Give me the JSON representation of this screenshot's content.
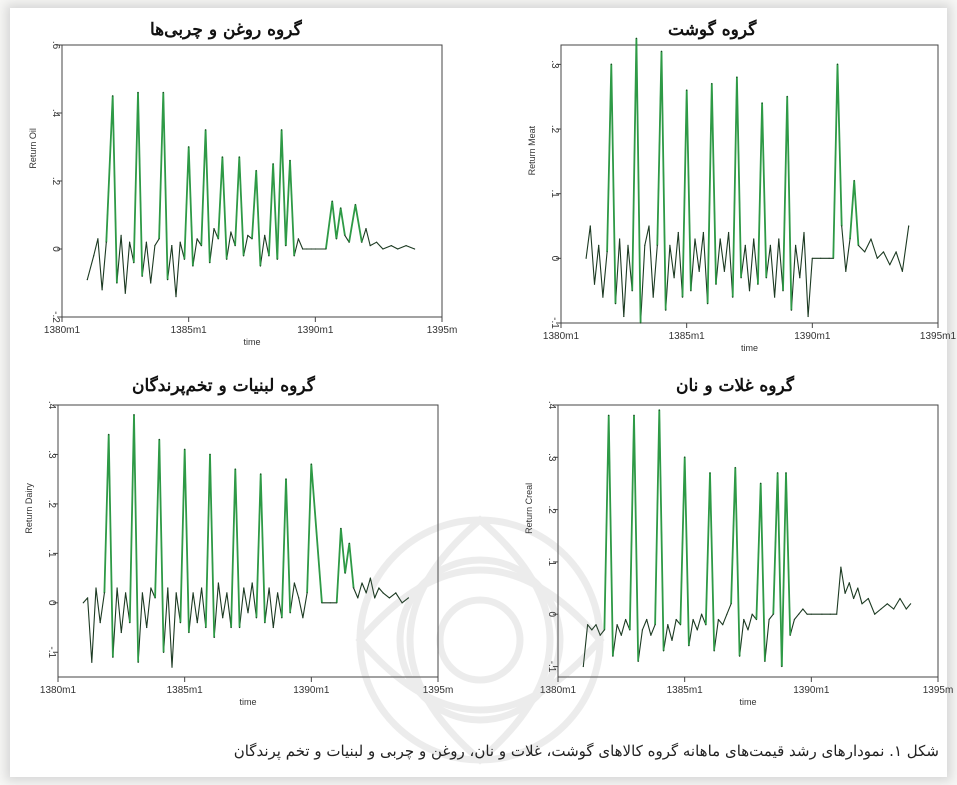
{
  "caption": "شکل ۱. نمودارهای رشد قیمت‌های ماهانه گروه کالاهای گوشت، غلات و نان، روغن و چربی و لبنیات و تخم پرندگان",
  "colors": {
    "spike": "#2e9a46",
    "base": "#1c3a22",
    "axis": "#444444"
  },
  "chart_data": [
    {
      "type": "line",
      "title": "گروه روغن و چربی‌ها",
      "ylabel": "Return Oil",
      "xlabel": "time",
      "x_ticks": [
        "1380m1",
        "1385m1",
        "1390m1",
        "1395m"
      ],
      "y_ticks": [
        "-.2",
        "0",
        ".2",
        ".4",
        ".6"
      ],
      "ylim": [
        -0.2,
        0.6
      ],
      "xlim": [
        "1380m1",
        "1395m1"
      ],
      "series": [
        {
          "x": [
            "1381m1",
            "1381m4",
            "1381m6",
            "1381m8",
            "1381m10",
            "1382m1",
            "1382m3",
            "1382m5",
            "1382m7",
            "1382m9",
            "1382m11",
            "1383m1",
            "1383m3",
            "1383m5",
            "1383m7",
            "1383m9",
            "1383m11",
            "1384m1",
            "1384m3",
            "1384m5",
            "1384m7",
            "1384m9",
            "1384m11",
            "1385m1",
            "1385m3",
            "1385m5",
            "1385m7",
            "1385m9",
            "1385m11",
            "1386m1",
            "1386m3",
            "1386m5",
            "1386m7",
            "1386m9",
            "1386m11",
            "1387m1",
            "1387m3",
            "1387m5",
            "1387m7",
            "1387m9",
            "1387m11",
            "1388m1",
            "1388m3",
            "1388m5",
            "1388m7",
            "1388m9",
            "1388m11",
            "1389m1",
            "1389m3",
            "1389m5",
            "1389m7",
            "1389m9",
            "1389m11",
            "1390m1",
            "1390m6",
            "1390m9",
            "1390m11",
            "1391m1",
            "1391m3",
            "1391m5",
            "1391m8",
            "1391m11",
            "1392m1",
            "1392m3",
            "1392m6",
            "1392m9",
            "1393m1",
            "1393m4",
            "1393m8",
            "1393m12"
          ],
          "y": [
            -0.09,
            -0.02,
            0.03,
            -0.12,
            0.02,
            0.45,
            -0.1,
            0.04,
            -0.13,
            0.02,
            -0.04,
            0.46,
            -0.08,
            0.02,
            -0.1,
            0.01,
            0.03,
            0.46,
            -0.09,
            0.01,
            -0.14,
            0.02,
            -0.03,
            0.3,
            -0.05,
            0.03,
            0.01,
            0.35,
            -0.04,
            0.06,
            0.03,
            0.27,
            -0.03,
            0.05,
            0.01,
            0.27,
            -0.02,
            0.04,
            0.03,
            0.23,
            -0.05,
            0.04,
            -0.02,
            0.25,
            -0.03,
            0.35,
            0.01,
            0.26,
            -0.02,
            0.03,
            0.0,
            0.0,
            0.0,
            0.0,
            0.0,
            0.14,
            0.03,
            0.12,
            0.04,
            0.02,
            0.13,
            0.02,
            0.06,
            0.01,
            0.02,
            0.0,
            0.01,
            0.0,
            0.01,
            0.0
          ]
        }
      ]
    },
    {
      "type": "line",
      "title": "گروه گوشت",
      "ylabel": "Return Meat",
      "xlabel": "time",
      "x_ticks": [
        "1380m1",
        "1385m1",
        "1390m1",
        "1395m1"
      ],
      "y_ticks": [
        "-.1",
        "0",
        ".1",
        ".2",
        ".3"
      ],
      "ylim": [
        -0.1,
        0.33
      ],
      "xlim": [
        "1380m1",
        "1395m1"
      ],
      "series": [
        {
          "x": [
            "1381m1",
            "1381m3",
            "1381m5",
            "1381m7",
            "1381m9",
            "1381m11",
            "1382m1",
            "1382m3",
            "1382m5",
            "1382m7",
            "1382m9",
            "1382m11",
            "1383m1",
            "1383m3",
            "1383m5",
            "1383m7",
            "1383m9",
            "1383m11",
            "1384m1",
            "1384m3",
            "1384m5",
            "1384m7",
            "1384m9",
            "1384m11",
            "1385m1",
            "1385m3",
            "1385m5",
            "1385m7",
            "1385m9",
            "1385m11",
            "1386m1",
            "1386m3",
            "1386m5",
            "1386m7",
            "1386m9",
            "1386m11",
            "1387m1",
            "1387m3",
            "1387m5",
            "1387m7",
            "1387m9",
            "1387m11",
            "1388m1",
            "1388m3",
            "1388m5",
            "1388m7",
            "1388m9",
            "1388m11",
            "1389m1",
            "1389m3",
            "1389m5",
            "1389m7",
            "1389m9",
            "1389m11",
            "1390m1",
            "1390m5",
            "1390m9",
            "1390m11",
            "1391m1",
            "1391m3",
            "1391m5",
            "1391m7",
            "1391m9",
            "1391m11",
            "1392m2",
            "1392m5",
            "1392m8",
            "1392m11",
            "1393m2",
            "1393m5",
            "1393m8",
            "1393m11"
          ],
          "y": [
            0.0,
            0.05,
            -0.04,
            0.02,
            -0.06,
            0.01,
            0.3,
            -0.07,
            0.03,
            -0.09,
            0.02,
            -0.05,
            0.34,
            -0.1,
            0.02,
            0.05,
            -0.06,
            0.02,
            0.32,
            -0.08,
            0.02,
            -0.03,
            0.04,
            -0.06,
            0.26,
            -0.05,
            0.03,
            -0.02,
            0.04,
            -0.07,
            0.27,
            -0.04,
            0.03,
            -0.02,
            0.04,
            -0.06,
            0.28,
            -0.03,
            0.02,
            -0.05,
            0.03,
            -0.04,
            0.24,
            -0.03,
            0.02,
            -0.06,
            0.03,
            -0.05,
            0.25,
            -0.08,
            0.02,
            -0.03,
            0.04,
            -0.09,
            0.0,
            0.0,
            0.0,
            0.0,
            0.3,
            0.05,
            -0.02,
            0.03,
            0.12,
            0.02,
            0.01,
            0.03,
            0.0,
            0.01,
            -0.01,
            0.01,
            -0.02,
            0.05
          ]
        }
      ]
    },
    {
      "type": "line",
      "title": "گروه لبنیات و تخم‌پرندگان",
      "ylabel": "Return Dairy",
      "xlabel": "time",
      "x_ticks": [
        "1380m1",
        "1385m1",
        "1390m1",
        "1395m"
      ],
      "y_ticks": [
        "-.1",
        "0",
        ".1",
        ".2",
        ".3",
        ".4"
      ],
      "ylim": [
        -0.15,
        0.4
      ],
      "xlim": [
        "1380m1",
        "1395m1"
      ],
      "series": [
        {
          "x": [
            "1381m1",
            "1381m3",
            "1381m5",
            "1381m7",
            "1381m9",
            "1381m11",
            "1382m1",
            "1382m3",
            "1382m5",
            "1382m7",
            "1382m9",
            "1382m11",
            "1383m1",
            "1383m3",
            "1383m5",
            "1383m7",
            "1383m9",
            "1383m11",
            "1384m1",
            "1384m3",
            "1384m5",
            "1384m7",
            "1384m9",
            "1384m11",
            "1385m1",
            "1385m3",
            "1385m5",
            "1385m7",
            "1385m9",
            "1385m11",
            "1386m1",
            "1386m3",
            "1386m5",
            "1386m7",
            "1386m9",
            "1386m11",
            "1387m1",
            "1387m3",
            "1387m5",
            "1387m7",
            "1387m9",
            "1387m11",
            "1388m1",
            "1388m3",
            "1388m5",
            "1388m7",
            "1388m9",
            "1388m11",
            "1389m1",
            "1389m3",
            "1389m5",
            "1389m7",
            "1389m9",
            "1389m11",
            "1390m1",
            "1390m6",
            "1390m10",
            "1391m1",
            "1391m3",
            "1391m5",
            "1391m7",
            "1391m9",
            "1391m11",
            "1392m1",
            "1392m3",
            "1392m5",
            "1392m7",
            "1392m9",
            "1392m11",
            "1393m2",
            "1393m5",
            "1393m8",
            "1393m11"
          ],
          "y": [
            0.0,
            0.01,
            -0.12,
            0.03,
            -0.04,
            0.02,
            0.34,
            -0.11,
            0.03,
            -0.06,
            0.02,
            -0.04,
            0.38,
            -0.12,
            0.02,
            -0.05,
            0.03,
            0.01,
            0.33,
            -0.1,
            0.03,
            -0.13,
            0.02,
            -0.04,
            0.31,
            -0.06,
            0.02,
            -0.04,
            0.03,
            -0.05,
            0.3,
            -0.07,
            0.04,
            -0.03,
            0.02,
            -0.05,
            0.27,
            -0.05,
            0.03,
            -0.02,
            0.04,
            -0.03,
            0.26,
            -0.04,
            0.03,
            -0.05,
            0.02,
            -0.03,
            0.25,
            -0.02,
            0.04,
            0.01,
            -0.03,
            0.02,
            0.28,
            0.0,
            0.0,
            0.0,
            0.15,
            0.06,
            0.12,
            0.03,
            0.01,
            0.04,
            0.02,
            0.05,
            0.01,
            0.03,
            0.02,
            0.01,
            0.02,
            0.0,
            0.01
          ]
        }
      ]
    },
    {
      "type": "line",
      "title": "گروه غلات و نان",
      "ylabel": "Return Creal",
      "xlabel": "time",
      "x_ticks": [
        "1380m1",
        "1385m1",
        "1390m1",
        "1395m"
      ],
      "y_ticks": [
        "-.1",
        "0",
        ".1",
        ".2",
        ".3",
        ".4"
      ],
      "ylim": [
        -0.12,
        0.4
      ],
      "xlim": [
        "1380m1",
        "1395m1"
      ],
      "series": [
        {
          "x": [
            "1381m1",
            "1381m3",
            "1381m5",
            "1381m7",
            "1381m9",
            "1381m11",
            "1382m1",
            "1382m3",
            "1382m5",
            "1382m7",
            "1382m9",
            "1382m11",
            "1383m1",
            "1383m3",
            "1383m5",
            "1383m7",
            "1383m9",
            "1383m11",
            "1384m1",
            "1384m3",
            "1384m5",
            "1384m7",
            "1384m9",
            "1384m11",
            "1385m1",
            "1385m3",
            "1385m5",
            "1385m7",
            "1385m9",
            "1385m11",
            "1386m1",
            "1386m3",
            "1386m5",
            "1386m7",
            "1386m9",
            "1386m11",
            "1387m1",
            "1387m3",
            "1387m5",
            "1387m7",
            "1387m9",
            "1387m11",
            "1388m1",
            "1388m3",
            "1388m5",
            "1388m7",
            "1388m9",
            "1388m11",
            "1389m1",
            "1389m3",
            "1389m5",
            "1389m7",
            "1389m9",
            "1389m11",
            "1390m1",
            "1390m6",
            "1390m10",
            "1391m1",
            "1391m3",
            "1391m5",
            "1391m7",
            "1391m9",
            "1391m11",
            "1392m1",
            "1392m4",
            "1392m7",
            "1392m10",
            "1393m1",
            "1393m4",
            "1393m7",
            "1393m10",
            "1393m12"
          ],
          "y": [
            -0.1,
            -0.02,
            -0.03,
            -0.02,
            -0.04,
            -0.03,
            0.38,
            -0.08,
            -0.02,
            -0.04,
            -0.01,
            -0.03,
            0.38,
            -0.09,
            -0.03,
            -0.01,
            -0.04,
            -0.02,
            0.39,
            -0.07,
            -0.02,
            -0.05,
            -0.01,
            -0.02,
            0.3,
            -0.06,
            -0.01,
            -0.03,
            0.0,
            -0.02,
            0.27,
            -0.07,
            -0.01,
            -0.02,
            0.0,
            0.02,
            0.28,
            -0.08,
            -0.01,
            -0.03,
            0.0,
            -0.01,
            0.25,
            -0.09,
            -0.01,
            0.0,
            0.27,
            -0.1,
            0.27,
            -0.04,
            -0.01,
            0.0,
            0.01,
            0.0,
            0.0,
            0.0,
            0.0,
            0.0,
            0.09,
            0.04,
            0.06,
            0.03,
            0.05,
            0.02,
            0.03,
            0.0,
            0.01,
            0.02,
            0.01,
            0.03,
            0.01,
            0.02
          ]
        }
      ]
    }
  ]
}
